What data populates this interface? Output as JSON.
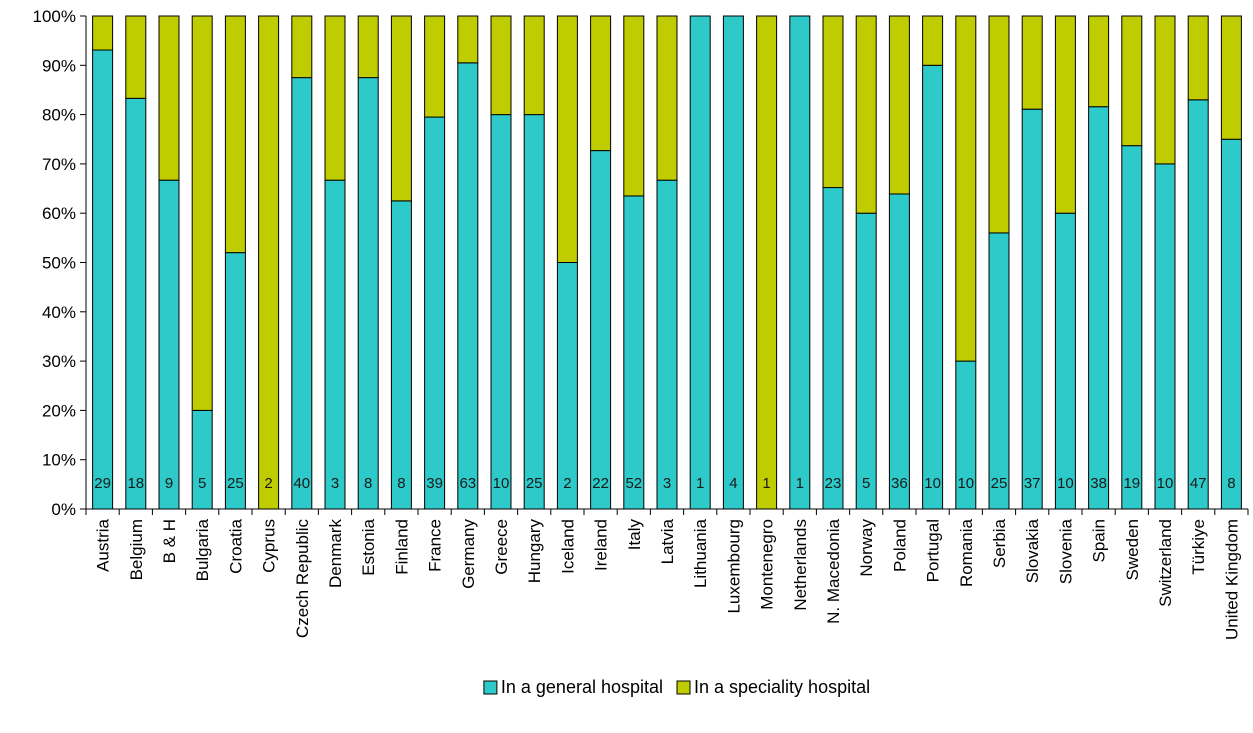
{
  "chart_data": {
    "type": "bar",
    "stacked": true,
    "percent_stacked": true,
    "categories": [
      "Austria",
      "Belgium",
      "B & H",
      "Bulgaria",
      "Croatia",
      "Cyprus",
      "Czech Republic",
      "Denmark",
      "Estonia",
      "Finland",
      "France",
      "Germany",
      "Greece",
      "Hungary",
      "Iceland",
      "Ireland",
      "Italy",
      "Latvia",
      "Lithuania",
      "Luxembourg",
      "Montenegro",
      "Netherlands",
      "N. Macedonia",
      "Norway",
      "Poland",
      "Portugal",
      "Romania",
      "Serbia",
      "Slovakia",
      "Slovenia",
      "Spain",
      "Sweden",
      "Switzerland",
      "Türkiye",
      "United Kingdom"
    ],
    "series": [
      {
        "name": "In a general hospital",
        "color": "#2ec9c9",
        "values": [
          93.1,
          83.3,
          66.7,
          20,
          52,
          0,
          87.5,
          66.7,
          87.5,
          62.5,
          79.5,
          90.5,
          80,
          80,
          50,
          72.7,
          63.5,
          66.7,
          100,
          100,
          0,
          100,
          65.2,
          60,
          63.9,
          90,
          30,
          56,
          81.1,
          60,
          81.6,
          73.7,
          70,
          83,
          75
        ]
      },
      {
        "name": "In a speciality hospital",
        "color": "#bfcc00",
        "values": [
          6.9,
          16.7,
          33.3,
          80,
          48,
          100,
          12.5,
          33.3,
          12.5,
          37.5,
          20.5,
          9.5,
          20,
          20,
          50,
          27.3,
          36.5,
          33.3,
          0,
          0,
          100,
          0,
          34.8,
          40,
          36.1,
          10,
          70,
          44,
          18.9,
          40,
          18.4,
          26.3,
          30,
          17,
          25
        ]
      }
    ],
    "counts": [
      "29",
      "18",
      "9",
      "5",
      "25",
      "2",
      "40",
      "3",
      "8",
      "8",
      "39",
      "63",
      "10",
      "25",
      "2",
      "22",
      "52",
      "3",
      "1",
      "4",
      "1",
      "1",
      "23",
      "5",
      "36",
      "10",
      "10",
      "25",
      "37",
      "10",
      "38",
      "19",
      "10",
      "47",
      "8"
    ],
    "y_ticks": [
      "0%",
      "10%",
      "20%",
      "30%",
      "40%",
      "50%",
      "60%",
      "70%",
      "80%",
      "90%",
      "100%"
    ],
    "ylim": [
      0,
      100
    ],
    "grid": false,
    "legend_position": "bottom-center",
    "title": "",
    "xlabel": "",
    "ylabel": ""
  }
}
